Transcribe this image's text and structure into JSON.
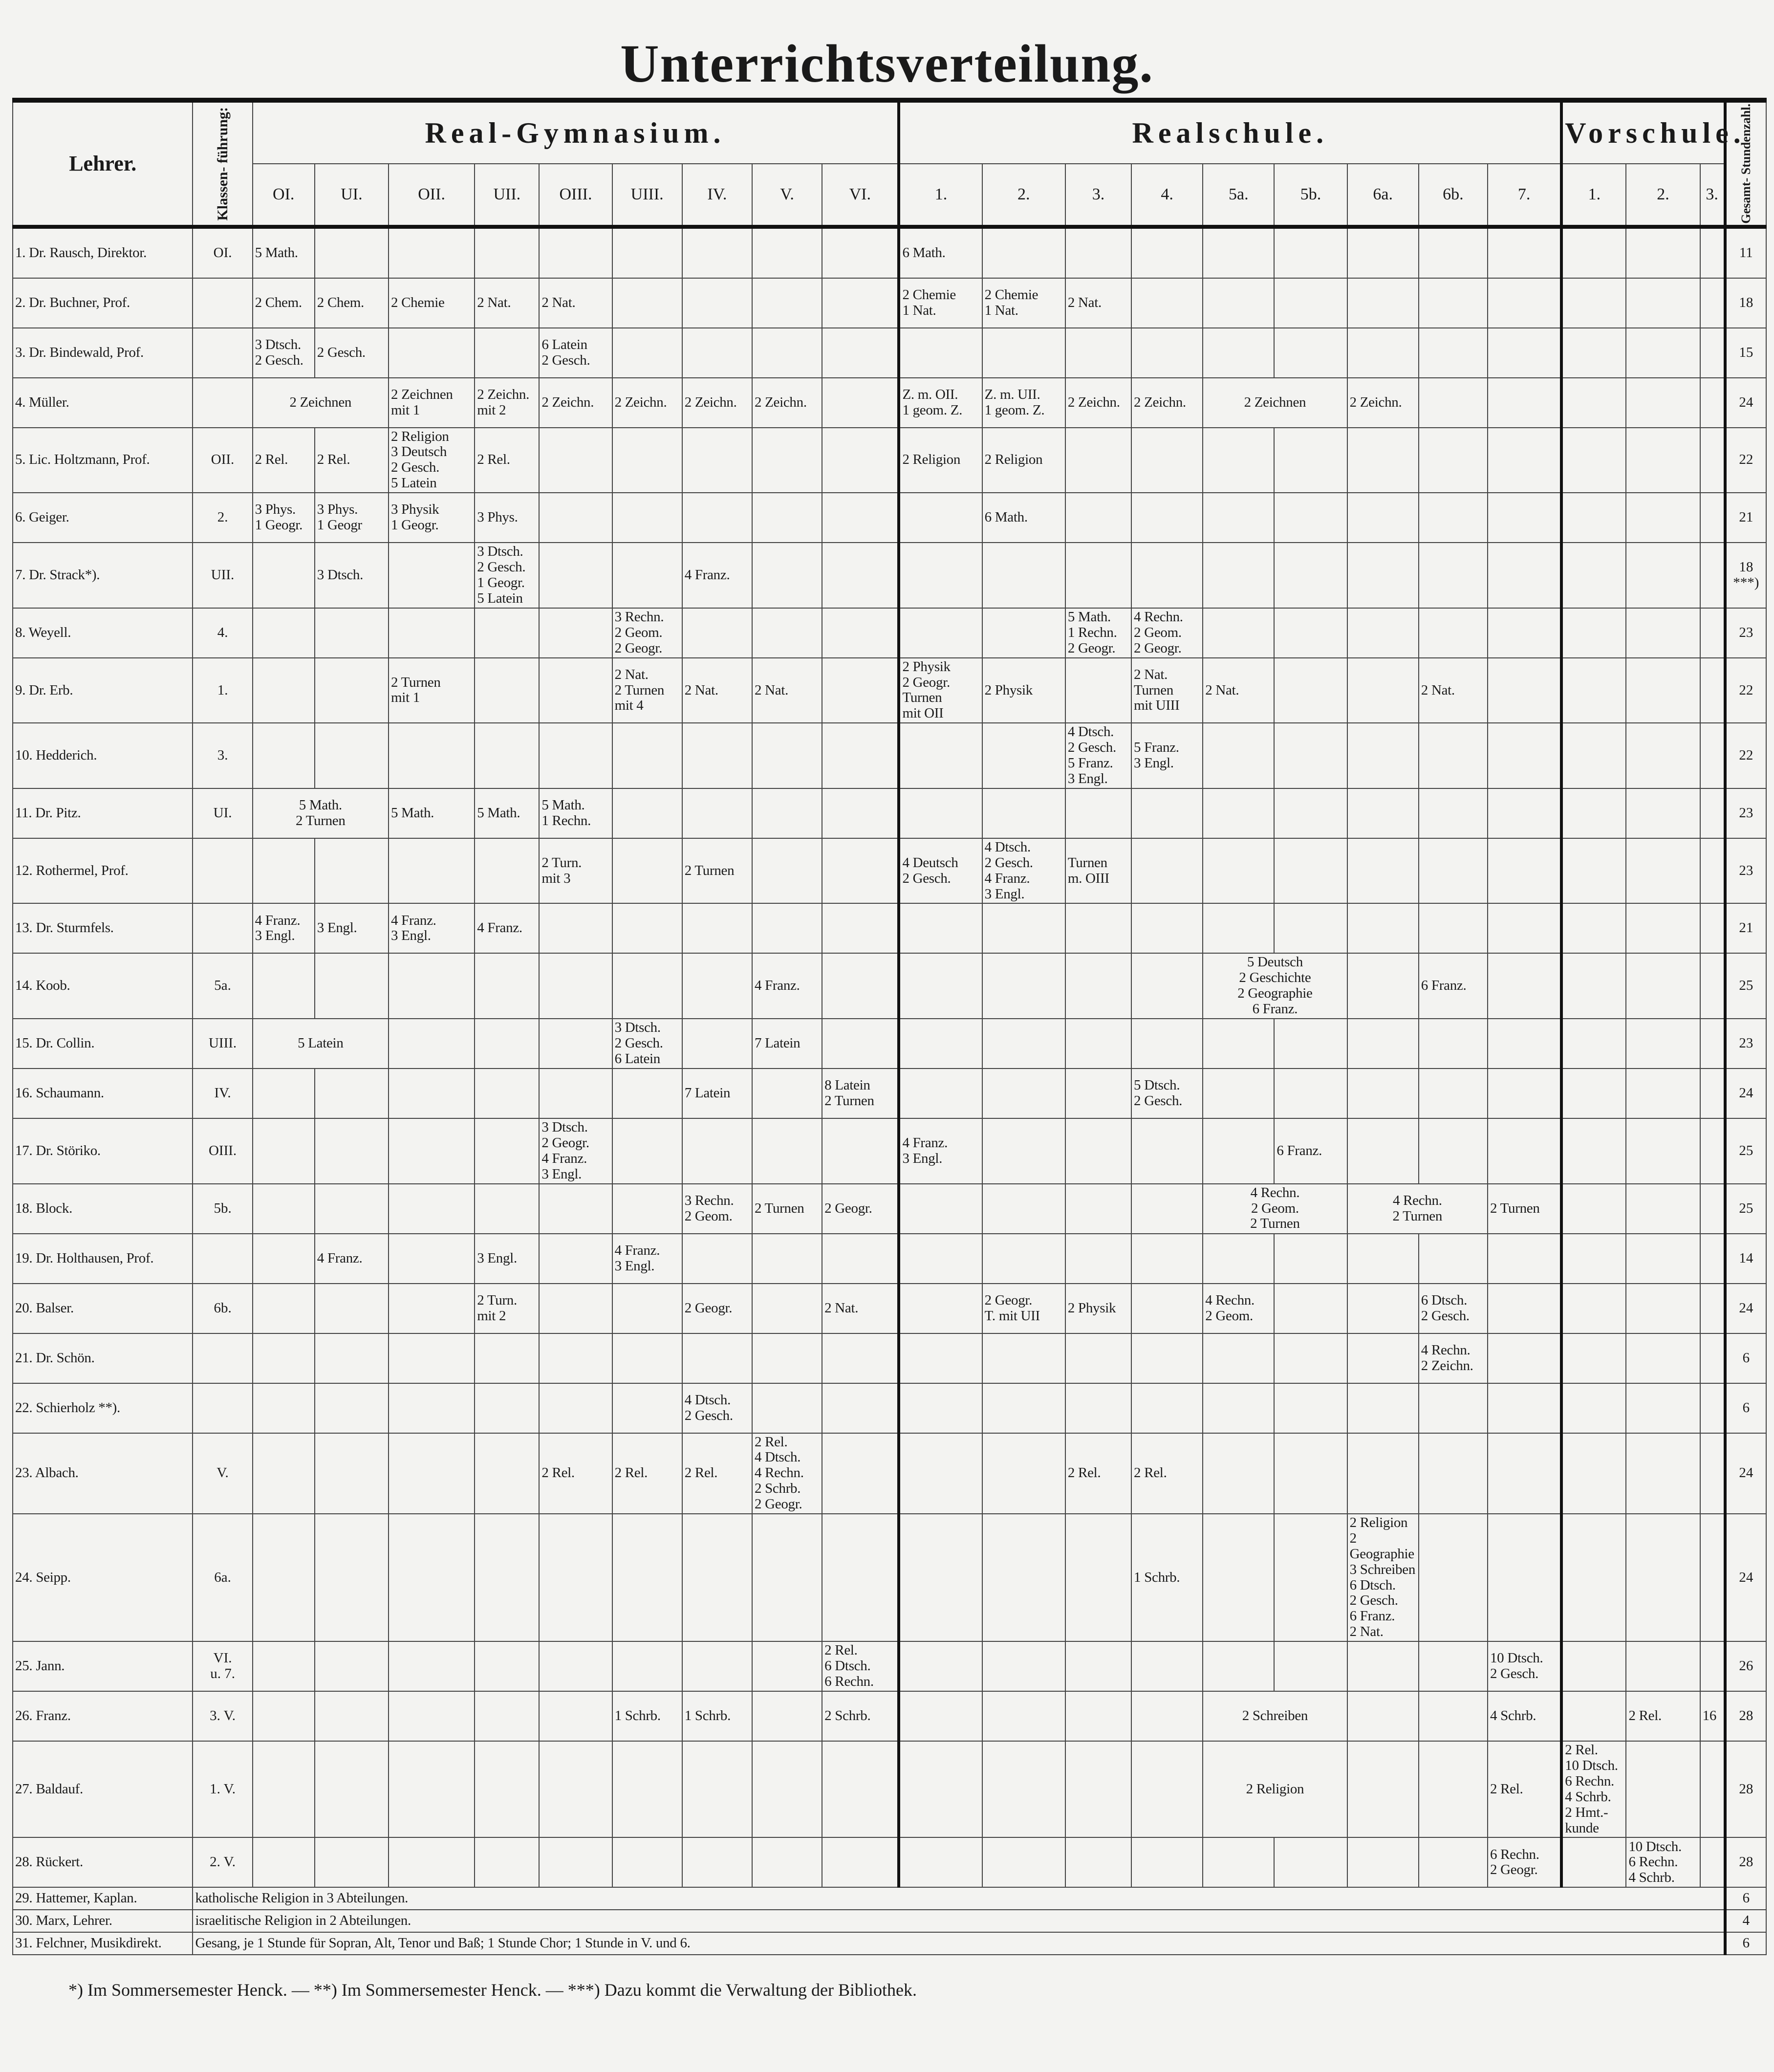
{
  "title": "Unterrichtsverteilung.",
  "header": {
    "teacher": "Lehrer.",
    "class_lead": "Klassen- führung:",
    "total": "Gesamt- Stundenzahl.",
    "groups": [
      {
        "label": "Real-Gymnasium.",
        "columns": [
          "OI.",
          "UI.",
          "OII.",
          "UII.",
          "OIII.",
          "UIII.",
          "IV.",
          "V.",
          "VI."
        ]
      },
      {
        "label": "Realschule.",
        "columns": [
          "1.",
          "2.",
          "3.",
          "4.",
          "5a.",
          "5b.",
          "6a.",
          "6b.",
          "7."
        ]
      },
      {
        "label": "Vorschule.",
        "columns": [
          "1.",
          "2.",
          "3."
        ]
      }
    ]
  },
  "rows": [
    {
      "no": "1.",
      "name": "Dr. Rausch, Direktor.",
      "klasse": "OI.",
      "total": "11",
      "cells": [
        {
          "cols": [
            "OI"
          ],
          "text": "5 Math."
        },
        {
          "cols": [
            "R1"
          ],
          "text": "6 Math."
        }
      ]
    },
    {
      "no": "2.",
      "name": "Dr. Buchner, Prof.",
      "klasse": "",
      "total": "18",
      "cells": [
        {
          "cols": [
            "OI"
          ],
          "text": "2 Chem."
        },
        {
          "cols": [
            "UI"
          ],
          "text": "2 Chem."
        },
        {
          "cols": [
            "OII"
          ],
          "text": "2 Chemie"
        },
        {
          "cols": [
            "UII"
          ],
          "text": "2 Nat."
        },
        {
          "cols": [
            "OIII"
          ],
          "text": "2 Nat."
        },
        {
          "cols": [
            "R1"
          ],
          "text": "2 Chemie\n1 Nat."
        },
        {
          "cols": [
            "R2"
          ],
          "text": "2 Chemie\n1 Nat."
        },
        {
          "cols": [
            "R3"
          ],
          "text": "2 Nat."
        }
      ]
    },
    {
      "no": "3.",
      "name": "Dr. Bindewald, Prof.",
      "klasse": "",
      "total": "15",
      "cells": [
        {
          "cols": [
            "OI"
          ],
          "text": "3 Dtsch.\n2 Gesch."
        },
        {
          "cols": [
            "UI"
          ],
          "text": "2 Gesch."
        },
        {
          "cols": [
            "OIII"
          ],
          "text": "6 Latein\n2 Gesch."
        }
      ]
    },
    {
      "no": "4.",
      "name": "Müller.",
      "klasse": "",
      "total": "24",
      "cells": [
        {
          "cols": [
            "OI",
            "UI"
          ],
          "text": "2 Zeichnen"
        },
        {
          "cols": [
            "OII"
          ],
          "text": "2 Zeichnen\nmit 1"
        },
        {
          "cols": [
            "UII"
          ],
          "text": "2 Zeichn.\nmit 2"
        },
        {
          "cols": [
            "OIII"
          ],
          "text": "2 Zeichn."
        },
        {
          "cols": [
            "UIII"
          ],
          "text": "2 Zeichn."
        },
        {
          "cols": [
            "IV"
          ],
          "text": "2 Zeichn."
        },
        {
          "cols": [
            "V"
          ],
          "text": "2 Zeichn."
        },
        {
          "cols": [
            "R1"
          ],
          "text": "Z. m. OII.\n1 geom. Z."
        },
        {
          "cols": [
            "R2"
          ],
          "text": "Z. m. UII.\n1 geom. Z."
        },
        {
          "cols": [
            "R3"
          ],
          "text": "2 Zeichn."
        },
        {
          "cols": [
            "R4"
          ],
          "text": "2 Zeichn."
        },
        {
          "cols": [
            "R5a",
            "R5b"
          ],
          "text": "2 Zeichnen"
        },
        {
          "cols": [
            "R6a"
          ],
          "text": "2 Zeichn."
        }
      ]
    },
    {
      "no": "5.",
      "name": "Lic. Holtzmann, Prof.",
      "klasse": "OII.",
      "total": "22",
      "cells": [
        {
          "cols": [
            "OI"
          ],
          "text": "2 Rel."
        },
        {
          "cols": [
            "UI"
          ],
          "text": "2 Rel."
        },
        {
          "cols": [
            "OII"
          ],
          "text": "2 Religion\n3 Deutsch\n2 Gesch.\n5 Latein"
        },
        {
          "cols": [
            "UII"
          ],
          "text": "2 Rel."
        },
        {
          "cols": [
            "R1"
          ],
          "text": "2 Religion"
        },
        {
          "cols": [
            "R2"
          ],
          "text": "2 Religion"
        }
      ]
    },
    {
      "no": "6.",
      "name": "Geiger.",
      "klasse": "2.",
      "total": "21",
      "cells": [
        {
          "cols": [
            "OI"
          ],
          "text": "3 Phys.\n1 Geogr."
        },
        {
          "cols": [
            "UI"
          ],
          "text": "3 Phys.\n1 Geogr"
        },
        {
          "cols": [
            "OII"
          ],
          "text": "3 Physik\n1 Geogr."
        },
        {
          "cols": [
            "UII"
          ],
          "text": "3 Phys."
        },
        {
          "cols": [
            "R2"
          ],
          "text": "6 Math."
        }
      ]
    },
    {
      "no": "7.",
      "name": "Dr. Strack*).",
      "klasse": "UII.",
      "total": "18\n***)",
      "cells": [
        {
          "cols": [
            "UI"
          ],
          "text": "3 Dtsch."
        },
        {
          "cols": [
            "UII"
          ],
          "text": "3 Dtsch.\n2 Gesch.\n1 Geogr.\n5 Latein"
        },
        {
          "cols": [
            "IV"
          ],
          "text": "4 Franz."
        }
      ]
    },
    {
      "no": "8.",
      "name": "Weyell.",
      "klasse": "4.",
      "total": "23",
      "cells": [
        {
          "cols": [
            "UIII"
          ],
          "text": "3 Rechn.\n2 Geom.\n2 Geogr."
        },
        {
          "cols": [
            "R3"
          ],
          "text": "5 Math.\n1 Rechn.\n2 Geogr."
        },
        {
          "cols": [
            "R4"
          ],
          "text": "4 Rechn.\n2 Geom.\n2 Geogr."
        }
      ]
    },
    {
      "no": "9.",
      "name": "Dr. Erb.",
      "klasse": "1.",
      "total": "22",
      "cells": [
        {
          "cols": [
            "OII"
          ],
          "text": "2 Turnen\nmit 1"
        },
        {
          "cols": [
            "UIII"
          ],
          "text": "2 Nat.\n2 Turnen\nmit 4"
        },
        {
          "cols": [
            "IV"
          ],
          "text": "2 Nat."
        },
        {
          "cols": [
            "V"
          ],
          "text": "2 Nat."
        },
        {
          "cols": [
            "R1"
          ],
          "text": "2 Physik\n2 Geogr.\nTurnen\nmit OII"
        },
        {
          "cols": [
            "R2"
          ],
          "text": "2 Physik"
        },
        {
          "cols": [
            "R4"
          ],
          "text": "2 Nat.\nTurnen\nmit UIII"
        },
        {
          "cols": [
            "R5a"
          ],
          "text": "2 Nat."
        },
        {
          "cols": [
            "R6b"
          ],
          "text": "2 Nat."
        }
      ]
    },
    {
      "no": "10.",
      "name": "Hedderich.",
      "klasse": "3.",
      "total": "22",
      "cells": [
        {
          "cols": [
            "R3"
          ],
          "text": "4 Dtsch.\n2 Gesch.\n5 Franz.\n3 Engl."
        },
        {
          "cols": [
            "R4"
          ],
          "text": "5 Franz.\n3 Engl."
        }
      ]
    },
    {
      "no": "11.",
      "name": "Dr. Pitz.",
      "klasse": "UI.",
      "total": "23",
      "cells": [
        {
          "cols": [
            "OI",
            "UI"
          ],
          "text": "5 Math.\n2 Turnen"
        },
        {
          "cols": [
            "OII"
          ],
          "text": "5 Math."
        },
        {
          "cols": [
            "UII"
          ],
          "text": "5 Math."
        },
        {
          "cols": [
            "OIII"
          ],
          "text": "5 Math.\n1 Rechn."
        }
      ]
    },
    {
      "no": "12.",
      "name": "Rothermel, Prof.",
      "klasse": "",
      "total": "23",
      "cells": [
        {
          "cols": [
            "OIII"
          ],
          "text": "2 Turn.\nmit 3"
        },
        {
          "cols": [
            "IV"
          ],
          "text": "2 Turnen"
        },
        {
          "cols": [
            "R1"
          ],
          "text": "4 Deutsch\n2 Gesch."
        },
        {
          "cols": [
            "R2"
          ],
          "text": "4 Dtsch.\n2 Gesch.\n4 Franz.\n3 Engl."
        },
        {
          "cols": [
            "R3"
          ],
          "text": "Turnen\nm. OIII"
        }
      ]
    },
    {
      "no": "13.",
      "name": "Dr. Sturmfels.",
      "klasse": "",
      "total": "21",
      "cells": [
        {
          "cols": [
            "OI"
          ],
          "text": "4 Franz.\n3 Engl."
        },
        {
          "cols": [
            "UI"
          ],
          "text": "3 Engl."
        },
        {
          "cols": [
            "OII"
          ],
          "text": "4 Franz.\n3 Engl."
        },
        {
          "cols": [
            "UII"
          ],
          "text": "4 Franz."
        }
      ]
    },
    {
      "no": "14.",
      "name": "Koob.",
      "klasse": "5a.",
      "total": "25",
      "cells": [
        {
          "cols": [
            "V"
          ],
          "text": "4 Franz."
        },
        {
          "cols": [
            "R5a",
            "R5b"
          ],
          "text": "5 Deutsch\n2 Geschichte\n2 Geographie\n6 Franz."
        },
        {
          "cols": [
            "R6b"
          ],
          "text": "6 Franz."
        }
      ]
    },
    {
      "no": "15.",
      "name": "Dr. Collin.",
      "klasse": "UIII.",
      "total": "23",
      "cells": [
        {
          "cols": [
            "OI",
            "UI"
          ],
          "text": "5 Latein"
        },
        {
          "cols": [
            "UIII"
          ],
          "text": "3 Dtsch.\n2 Gesch.\n6 Latein"
        },
        {
          "cols": [
            "V"
          ],
          "text": "7 Latein"
        }
      ]
    },
    {
      "no": "16.",
      "name": "Schaumann.",
      "klasse": "IV.",
      "total": "24",
      "cells": [
        {
          "cols": [
            "IV"
          ],
          "text": "7 Latein"
        },
        {
          "cols": [
            "VI"
          ],
          "text": "8 Latein\n2 Turnen"
        },
        {
          "cols": [
            "R4"
          ],
          "text": "5 Dtsch.\n2 Gesch."
        }
      ]
    },
    {
      "no": "17.",
      "name": "Dr. Störiko.",
      "klasse": "OIII.",
      "total": "25",
      "cells": [
        {
          "cols": [
            "OIII"
          ],
          "text": "3 Dtsch.\n2 Geogr.\n4 Franz.\n3 Engl."
        },
        {
          "cols": [
            "R1"
          ],
          "text": "4 Franz.\n3 Engl."
        },
        {
          "cols": [
            "R5b"
          ],
          "text": "6 Franz."
        }
      ]
    },
    {
      "no": "18.",
      "name": "Block.",
      "klasse": "5b.",
      "total": "25",
      "cells": [
        {
          "cols": [
            "IV"
          ],
          "text": "3 Rechn.\n2 Geom."
        },
        {
          "cols": [
            "V"
          ],
          "text": "2 Turnen"
        },
        {
          "cols": [
            "VI"
          ],
          "text": "2 Geogr."
        },
        {
          "cols": [
            "R5a",
            "R5b"
          ],
          "text": "4 Rechn.\n2 Geom.\n2 Turnen"
        },
        {
          "cols": [
            "R6a",
            "R6b"
          ],
          "text": "4 Rechn.\n2 Turnen"
        },
        {
          "cols": [
            "R7"
          ],
          "text": "2 Turnen"
        }
      ]
    },
    {
      "no": "19.",
      "name": "Dr. Holthausen, Prof.",
      "klasse": "",
      "total": "14",
      "cells": [
        {
          "cols": [
            "UI"
          ],
          "text": "4 Franz."
        },
        {
          "cols": [
            "UII"
          ],
          "text": "3 Engl."
        },
        {
          "cols": [
            "UIII"
          ],
          "text": "4 Franz.\n3 Engl."
        }
      ]
    },
    {
      "no": "20.",
      "name": "Balser.",
      "klasse": "6b.",
      "total": "24",
      "cells": [
        {
          "cols": [
            "UII"
          ],
          "text": "2 Turn.\nmit 2"
        },
        {
          "cols": [
            "IV"
          ],
          "text": "2 Geogr."
        },
        {
          "cols": [
            "VI"
          ],
          "text": "2 Nat."
        },
        {
          "cols": [
            "R2"
          ],
          "text": "2 Geogr.\nT. mit UII"
        },
        {
          "cols": [
            "R3"
          ],
          "text": "2 Physik"
        },
        {
          "cols": [
            "R5a"
          ],
          "text": "4 Rechn.\n2 Geom."
        },
        {
          "cols": [
            "R6b"
          ],
          "text": "6 Dtsch.\n2 Gesch."
        }
      ]
    },
    {
      "no": "21.",
      "name": "Dr. Schön.",
      "klasse": "",
      "total": "6",
      "cells": [
        {
          "cols": [
            "R6b"
          ],
          "text": "4 Rechn.\n2 Zeichn."
        }
      ]
    },
    {
      "no": "22.",
      "name": "Schierholz **).",
      "klasse": "",
      "total": "6",
      "cells": [
        {
          "cols": [
            "IV"
          ],
          "text": "4 Dtsch.\n2 Gesch."
        }
      ]
    },
    {
      "no": "23.",
      "name": "Albach.",
      "klasse": "V.",
      "total": "24",
      "cells": [
        {
          "cols": [
            "OIII"
          ],
          "text": "2 Rel."
        },
        {
          "cols": [
            "UIII"
          ],
          "text": "2 Rel."
        },
        {
          "cols": [
            "IV"
          ],
          "text": "2 Rel."
        },
        {
          "cols": [
            "V"
          ],
          "text": "2 Rel.\n4 Dtsch.\n4 Rechn.\n2 Schrb.\n2 Geogr."
        },
        {
          "cols": [
            "R3"
          ],
          "text": "2 Rel."
        },
        {
          "cols": [
            "R4"
          ],
          "text": "2 Rel."
        }
      ]
    },
    {
      "no": "24.",
      "name": "Seipp.",
      "klasse": "6a.",
      "total": "24",
      "cells": [
        {
          "cols": [
            "R4"
          ],
          "text": "1 Schrb."
        },
        {
          "cols": [
            "R6a"
          ],
          "text": "2 Religion\n2 Geographie\n3 Schreiben\n6 Dtsch.\n2 Gesch.\n6 Franz.\n2 Nat."
        }
      ]
    },
    {
      "no": "25.",
      "name": "Jann.",
      "klasse": "VI.\nu. 7.",
      "total": "26",
      "cells": [
        {
          "cols": [
            "VI"
          ],
          "text": "2 Rel.\n6 Dtsch.\n6 Rechn."
        },
        {
          "cols": [
            "R7"
          ],
          "text": "10 Dtsch.\n2 Gesch."
        }
      ]
    },
    {
      "no": "26.",
      "name": "Franz.",
      "klasse": "3. V.",
      "total": "28",
      "cells": [
        {
          "cols": [
            "UIII"
          ],
          "text": "1 Schrb."
        },
        {
          "cols": [
            "IV"
          ],
          "text": "1 Schrb."
        },
        {
          "cols": [
            "VI"
          ],
          "text": "2 Schrb."
        },
        {
          "cols": [
            "R5a",
            "R5b"
          ],
          "text": "2 Schreiben"
        },
        {
          "cols": [
            "R7"
          ],
          "text": "4 Schrb."
        },
        {
          "cols": [
            "V2"
          ],
          "text": "2 Rel."
        },
        {
          "cols": [
            "V3"
          ],
          "text": "16"
        }
      ]
    },
    {
      "no": "27.",
      "name": "Baldauf.",
      "klasse": "1. V.",
      "total": "28",
      "cells": [
        {
          "cols": [
            "R5a",
            "R5b"
          ],
          "text": "2 Religion"
        },
        {
          "cols": [
            "R7"
          ],
          "text": "2 Rel."
        },
        {
          "cols": [
            "V1"
          ],
          "text": "2 Rel.\n10 Dtsch.\n6 Rechn.\n4 Schrb.\n2 Hmt.-\nkunde"
        }
      ]
    },
    {
      "no": "28.",
      "name": "Rückert.",
      "klasse": "2. V.",
      "total": "28",
      "cells": [
        {
          "cols": [
            "R7"
          ],
          "text": "6 Rechn.\n2 Geogr."
        },
        {
          "cols": [
            "V2"
          ],
          "text": "10 Dtsch.\n6 Rechn.\n4 Schrb."
        }
      ]
    }
  ],
  "special_rows": [
    {
      "no": "29.",
      "name": "Hattemer, Kaplan.",
      "text": "katholische Religion in 3 Abteilungen.",
      "total": "6"
    },
    {
      "no": "30.",
      "name": "Marx, Lehrer.",
      "text": "israelitische Religion in 2 Abteilungen.",
      "total": "4"
    },
    {
      "no": "31.",
      "name": "Felchner, Musikdirekt.",
      "text": "Gesang, je 1 Stunde für Sopran, Alt, Tenor und Baß; 1 Stunde Chor; 1 Stunde in V. und 6.",
      "total": "6"
    }
  ],
  "footnote": "*) Im Sommersemester Henck. — **) Im Sommersemester Henck. — ***) Dazu kommt die Verwaltung der Bibliothek."
}
